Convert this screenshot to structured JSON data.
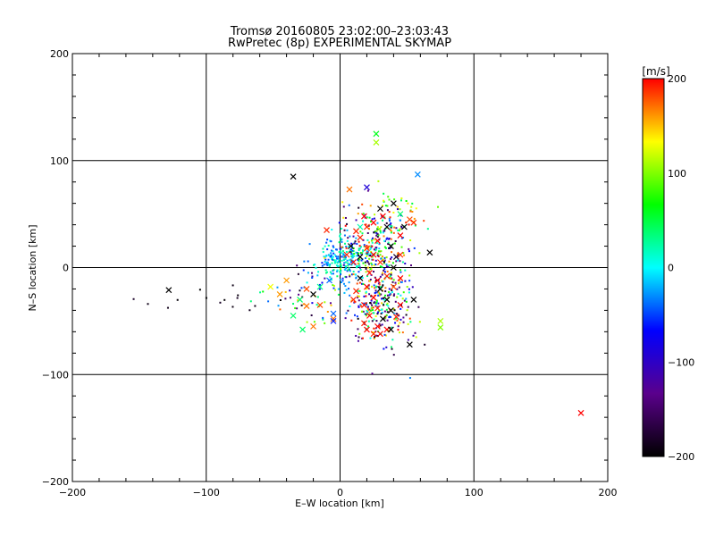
{
  "chart_data": {
    "type": "scatter",
    "title": "Tromsø 20160805 23:02:00–23:03:43",
    "subtitle": "RwPretec (8p) EXPERIMENTAL SKYMAP",
    "xlabel": "E–W location [km]",
    "ylabel": "N–S location [km]",
    "xlim": [
      -200,
      200
    ],
    "ylim": [
      -200,
      200
    ],
    "xticks": [
      -200,
      -100,
      0,
      100,
      200
    ],
    "yticks": [
      -200,
      -100,
      0,
      100,
      200
    ],
    "grid": true,
    "colorbar": {
      "label": "[m/s]",
      "range": [
        -200,
        200
      ],
      "ticks": [
        -200,
        -100,
        0,
        100,
        200
      ],
      "colormap": "rainbow (black → purple → blue → cyan → green → yellow → red)",
      "stops": [
        "#000000",
        "#5a008c",
        "#0000ff",
        "#00ffff",
        "#00ff00",
        "#ffff00",
        "#ff0000"
      ],
      "position": "right"
    },
    "markers": [
      {
        "symbol": "x",
        "x": -128,
        "y": -21,
        "v": -200
      },
      {
        "symbol": "x",
        "x": -35,
        "y": 85,
        "v": -200
      },
      {
        "symbol": "x",
        "x": 180,
        "y": -136,
        "v": 200
      },
      {
        "symbol": "x",
        "x": 27,
        "y": 125,
        "v": 60
      },
      {
        "symbol": "x",
        "x": 27,
        "y": 117,
        "v": 110
      },
      {
        "symbol": "x",
        "x": 58,
        "y": 87,
        "v": -30
      },
      {
        "symbol": "x",
        "x": 20,
        "y": 75,
        "v": -90
      },
      {
        "symbol": "x",
        "x": 7,
        "y": 73,
        "v": 170
      },
      {
        "symbol": "x",
        "x": 67,
        "y": 14,
        "v": -200
      },
      {
        "symbol": "x",
        "x": 75,
        "y": -50,
        "v": 110
      },
      {
        "symbol": "x",
        "x": 75,
        "y": -56,
        "v": 100
      },
      {
        "symbol": "x",
        "x": 45,
        "y": 12,
        "v": 190
      },
      {
        "symbol": "x",
        "x": -52,
        "y": -18,
        "v": 130
      },
      {
        "symbol": "x",
        "x": -45,
        "y": -25,
        "v": 160
      },
      {
        "symbol": "x",
        "x": -40,
        "y": -12,
        "v": 160
      },
      {
        "symbol": "x",
        "x": -35,
        "y": -45,
        "v": 40
      },
      {
        "symbol": "x",
        "x": -28,
        "y": -58,
        "v": 40
      },
      {
        "symbol": "x",
        "x": -25,
        "y": -36,
        "v": 170
      },
      {
        "symbol": "x",
        "x": -20,
        "y": -55,
        "v": 170
      },
      {
        "symbol": "x",
        "x": -5,
        "y": -48,
        "v": 170
      },
      {
        "symbol": "x",
        "x": -5,
        "y": -43,
        "v": -40
      },
      {
        "symbol": "x",
        "x": -10,
        "y": 35,
        "v": 190
      },
      {
        "symbol": "x",
        "x": 15,
        "y": 38,
        "v": 20
      },
      {
        "symbol": "x",
        "x": 30,
        "y": 55,
        "v": -200
      },
      {
        "symbol": "x",
        "x": 40,
        "y": 60,
        "v": -200
      },
      {
        "symbol": "x",
        "x": 52,
        "y": 45,
        "v": 180
      },
      {
        "symbol": "x",
        "x": 32,
        "y": 48,
        "v": 200
      },
      {
        "symbol": "x",
        "x": 25,
        "y": 42,
        "v": 200
      },
      {
        "symbol": "x",
        "x": 20,
        "y": 38,
        "v": 190
      },
      {
        "symbol": "x",
        "x": 35,
        "y": 38,
        "v": -190
      },
      {
        "symbol": "x",
        "x": 45,
        "y": 30,
        "v": 200
      },
      {
        "symbol": "x",
        "x": 28,
        "y": 25,
        "v": 200
      },
      {
        "symbol": "x",
        "x": 15,
        "y": 28,
        "v": 190
      },
      {
        "symbol": "x",
        "x": 20,
        "y": 18,
        "v": 190
      },
      {
        "symbol": "x",
        "x": 38,
        "y": 20,
        "v": -200
      },
      {
        "symbol": "x",
        "x": 25,
        "y": 12,
        "v": 200
      },
      {
        "symbol": "x",
        "x": 15,
        "y": 10,
        "v": -200
      },
      {
        "symbol": "x",
        "x": 10,
        "y": 5,
        "v": 200
      },
      {
        "symbol": "x",
        "x": 30,
        "y": 5,
        "v": 190
      },
      {
        "symbol": "x",
        "x": 40,
        "y": 0,
        "v": -200
      },
      {
        "symbol": "x",
        "x": 22,
        "y": -5,
        "v": 200
      },
      {
        "symbol": "x",
        "x": 15,
        "y": -10,
        "v": -200
      },
      {
        "symbol": "x",
        "x": 28,
        "y": -12,
        "v": 200
      },
      {
        "symbol": "x",
        "x": 35,
        "y": -8,
        "v": 190
      },
      {
        "symbol": "x",
        "x": 20,
        "y": -18,
        "v": 200
      },
      {
        "symbol": "x",
        "x": 30,
        "y": -20,
        "v": -200
      },
      {
        "symbol": "x",
        "x": 40,
        "y": -18,
        "v": 180
      },
      {
        "symbol": "x",
        "x": 12,
        "y": -22,
        "v": 190
      },
      {
        "symbol": "x",
        "x": 25,
        "y": -28,
        "v": 200
      },
      {
        "symbol": "x",
        "x": 35,
        "y": -30,
        "v": -200
      },
      {
        "symbol": "x",
        "x": 18,
        "y": -35,
        "v": 200
      },
      {
        "symbol": "x",
        "x": 28,
        "y": -38,
        "v": 190
      },
      {
        "symbol": "x",
        "x": 38,
        "y": -40,
        "v": -200
      },
      {
        "symbol": "x",
        "x": 22,
        "y": -45,
        "v": 200
      },
      {
        "symbol": "x",
        "x": 32,
        "y": -48,
        "v": -200
      },
      {
        "symbol": "x",
        "x": 42,
        "y": -46,
        "v": 190
      },
      {
        "symbol": "x",
        "x": 18,
        "y": -52,
        "v": 190
      },
      {
        "symbol": "x",
        "x": 28,
        "y": -55,
        "v": 200
      },
      {
        "symbol": "x",
        "x": 35,
        "y": -58,
        "v": 200
      },
      {
        "symbol": "x",
        "x": 25,
        "y": -62,
        "v": 190
      },
      {
        "symbol": "x",
        "x": 52,
        "y": -72,
        "v": -200
      },
      {
        "symbol": "x",
        "x": 55,
        "y": -30,
        "v": -200
      },
      {
        "symbol": "x",
        "x": -15,
        "y": -35,
        "v": 180
      },
      {
        "symbol": "x",
        "x": -25,
        "y": -20,
        "v": 180
      },
      {
        "symbol": "x",
        "x": -8,
        "y": -12,
        "v": -40
      },
      {
        "symbol": "x",
        "x": -5,
        "y": -50,
        "v": -60
      },
      {
        "symbol": "x",
        "x": -30,
        "y": -30,
        "v": 40
      },
      {
        "symbol": "x",
        "x": -20,
        "y": -25,
        "v": -200
      },
      {
        "symbol": "x",
        "x": -15,
        "y": -18,
        "v": 30
      },
      {
        "symbol": "x",
        "x": 8,
        "y": 20,
        "v": -200
      },
      {
        "symbol": "x",
        "x": 5,
        "y": 12,
        "v": 190
      },
      {
        "symbol": "x",
        "x": 48,
        "y": 38,
        "v": -200
      },
      {
        "symbol": "x",
        "x": 45,
        "y": 50,
        "v": 40
      },
      {
        "symbol": "x",
        "x": 55,
        "y": 42,
        "v": 190
      },
      {
        "symbol": "x",
        "x": 12,
        "y": 34,
        "v": 190
      },
      {
        "symbol": "x",
        "x": 18,
        "y": 48,
        "v": 200
      },
      {
        "symbol": "x",
        "x": 42,
        "y": 10,
        "v": -180
      },
      {
        "symbol": "x",
        "x": 45,
        "y": -10,
        "v": 200
      },
      {
        "symbol": "x",
        "x": 38,
        "y": -58,
        "v": -200
      },
      {
        "symbol": "x",
        "x": 30,
        "y": -62,
        "v": 200
      },
      {
        "symbol": "x",
        "x": 20,
        "y": -58,
        "v": 200
      },
      {
        "symbol": "x",
        "x": 45,
        "y": -35,
        "v": 200
      },
      {
        "symbol": "x",
        "x": 10,
        "y": -30,
        "v": 190
      }
    ],
    "clusters": [
      {
        "symbol": "dot",
        "cx": 0,
        "cy": 8,
        "sx": 9,
        "sy": 10,
        "n": 220,
        "vmin": -60,
        "vmax": 40
      },
      {
        "symbol": "dot",
        "cx": 28,
        "cy": 25,
        "sx": 13,
        "sy": 17,
        "n": 220,
        "vmin": -200,
        "vmax": 200
      },
      {
        "symbol": "dot",
        "cx": 30,
        "cy": -30,
        "sx": 13,
        "sy": 22,
        "n": 320,
        "vmin": -200,
        "vmax": 200
      },
      {
        "symbol": "dot",
        "cx": -25,
        "cy": -25,
        "sx": 16,
        "sy": 18,
        "n": 60,
        "vmin": -200,
        "vmax": 200
      },
      {
        "symbol": "dot",
        "cx": 45,
        "cy": 60,
        "sx": 12,
        "sy": 10,
        "n": 30,
        "vmin": 40,
        "vmax": 200
      },
      {
        "symbol": "dot",
        "cx": -85,
        "cy": -30,
        "sx": 28,
        "sy": 8,
        "n": 14,
        "vmin": -200,
        "vmax": -180
      }
    ]
  }
}
